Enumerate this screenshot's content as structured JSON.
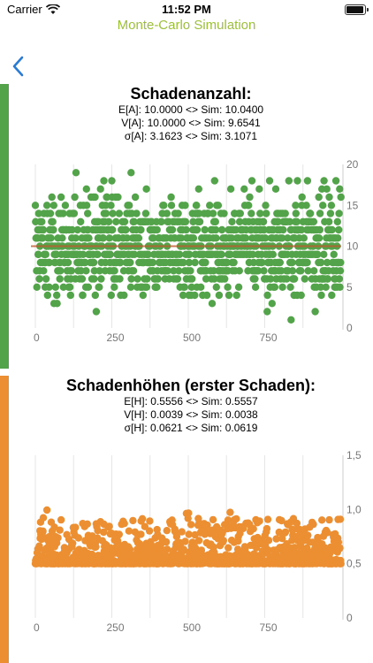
{
  "status_bar": {
    "carrier": "Carrier",
    "time": "11:52 PM"
  },
  "nav": {
    "title": "Monte-Carlo Simulation"
  },
  "colors": {
    "green": "#53a34a",
    "orange": "#ec8f32",
    "nav_title": "#9dc03a",
    "mean_line": "#c0592e"
  },
  "icons": {
    "back": "chevron-left-icon",
    "wifi": "wifi-icon",
    "battery": "battery-icon"
  },
  "sections": [
    {
      "title": "Schadenanzahl:",
      "stats": [
        "E[A]: 10.0000 <> Sim: 10.0400",
        "V[A]: 10.0000 <> Sim: 9.6541",
        "σ[A]: 3.1623 <> Sim: 3.1071"
      ]
    },
    {
      "title": "Schadenhöhen (erster Schaden):",
      "stats": [
        "E[H]: 0.5556 <> Sim: 0.5557",
        "V[H]: 0.0039 <> Sim: 0.0038",
        "σ[H]: 0.0621 <> Sim: 0.0619"
      ]
    }
  ],
  "chart_data": [
    {
      "type": "scatter",
      "title": "",
      "points_count": 1000,
      "x_range": [
        0,
        1000
      ],
      "ylim": [
        0,
        20
      ],
      "x_ticks": [
        "0",
        "250",
        "500",
        "750"
      ],
      "y_ticks": [
        "0",
        "5",
        "10",
        "15",
        "20"
      ],
      "y_axis_side": "right",
      "mean_line": 10.0,
      "summary": {
        "mean": 10.04,
        "variance": 9.6541,
        "sd": 3.1071,
        "min": 0,
        "max": 20
      },
      "color": "#53a34a",
      "grid": "vertical"
    },
    {
      "type": "scatter",
      "title": "",
      "points_count": 1000,
      "x_range": [
        0,
        1000
      ],
      "ylim": [
        0,
        1.5
      ],
      "x_ticks": [
        "0",
        "250",
        "500",
        "750"
      ],
      "y_ticks": [
        "0",
        "0,5",
        "1,0",
        "1,5"
      ],
      "y_axis_side": "right",
      "summary": {
        "mean": 0.5557,
        "variance": 0.0038,
        "sd": 0.0619,
        "min": 0.5,
        "max": 1.03
      },
      "color": "#ec8f32",
      "grid": "vertical"
    }
  ]
}
